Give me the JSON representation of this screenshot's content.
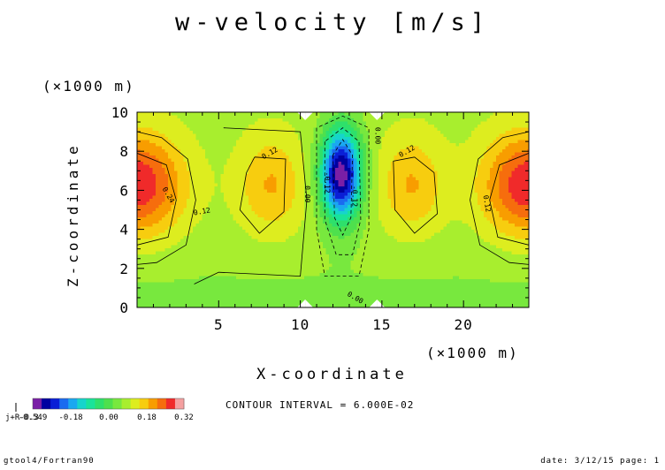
{
  "title": "w-velocity [m/s]",
  "chart_data": {
    "type": "heatmap",
    "title": "w-velocity [m/s]",
    "xlabel": "X-coordinate",
    "ylabel": "Z-coordinate",
    "x_unit_label": "(×1000 m)",
    "y_unit_label": "(×1000 m)",
    "xlim": [
      0,
      24
    ],
    "ylim": [
      0,
      10
    ],
    "x_ticks": [
      5,
      10,
      15,
      20
    ],
    "y_ticks": [
      0,
      2,
      4,
      6,
      8,
      10
    ],
    "contour_interval_text": "CONTOUR INTERVAL = 6.000E-02",
    "contour_labels": [
      "0.24",
      "0.12",
      "0.12",
      "0.00",
      "-0.12",
      "0.00",
      "-0.12",
      "0.00",
      "0.12",
      "0.12"
    ],
    "colorbar": {
      "levels": [
        -0.54,
        -0.48,
        -0.42,
        -0.36,
        -0.3,
        -0.24,
        -0.18,
        -0.12,
        -0.06,
        0.0,
        0.06,
        0.12,
        0.18,
        0.24,
        0.3,
        0.36
      ],
      "colors": [
        "#7a1fa6",
        "#0000a0",
        "#0a1fd6",
        "#1a6bf0",
        "#1aa8f0",
        "#16d4cc",
        "#19e39a",
        "#2ee06b",
        "#4ee04d",
        "#78e83e",
        "#a8ee2e",
        "#dded1f",
        "#f7cd0f",
        "#f89d00",
        "#f66d0d",
        "#f02a2a",
        "#f5a0a0"
      ],
      "tick_labels": [
        "-0.549",
        "-0.18",
        "0.00",
        "0.18",
        "0.32"
      ],
      "overlay_label": "j+R-0.3"
    }
  },
  "footer": {
    "left": "gtool4/Fortran90",
    "right": "date: 3/12/15 page: 1"
  }
}
